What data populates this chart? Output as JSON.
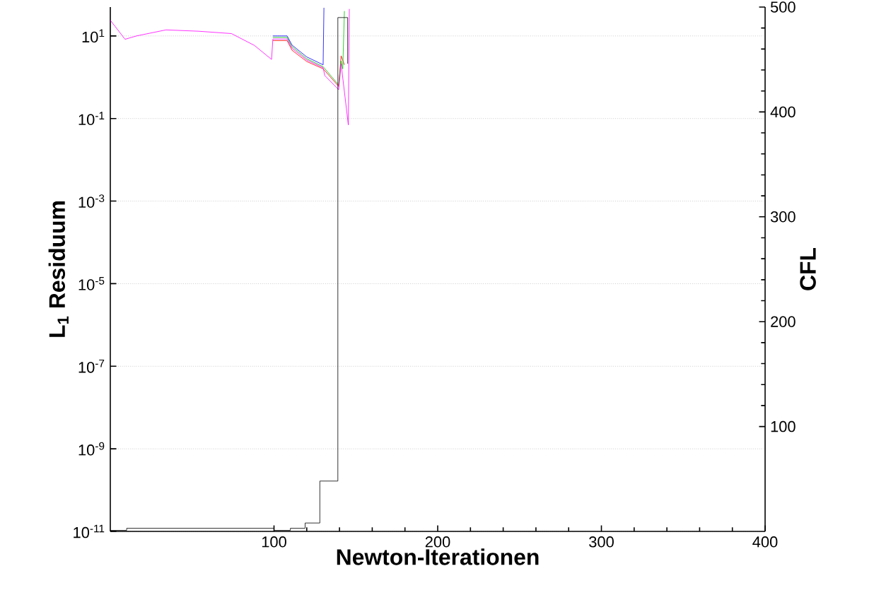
{
  "chart_data": {
    "type": "line",
    "xlabel": "Newton-Iterationen",
    "ylabel": "L$_{1}$ Residuum",
    "y2label": "CFL",
    "xlim": [
      0,
      400
    ],
    "xticks": [
      100,
      200,
      300,
      400
    ],
    "ylim": [
      1e-11,
      50
    ],
    "yticks": [
      {
        "value": 10,
        "label": "10$^{1}$"
      },
      {
        "value": 0.1,
        "label": "10$^{-1}$"
      },
      {
        "value": 0.001,
        "label": "10$^{-3}$"
      },
      {
        "value": 1e-05,
        "label": "10$^{-5}$"
      },
      {
        "value": 1e-07,
        "label": "10$^{-7}$"
      },
      {
        "value": 1e-09,
        "label": "10$^{-9}$"
      },
      {
        "value": 1e-11,
        "label": "10$^{-11}$"
      }
    ],
    "y2lim": [
      0,
      500
    ],
    "y2ticks": [
      100,
      200,
      300,
      400,
      500
    ],
    "log": "y",
    "grid": "y",
    "legend": false,
    "marker": "none",
    "line_style": "solid",
    "series": [
      {
        "color": "#0000ff",
        "x": [
          99.3,
          108,
          111,
          120,
          130,
          130.5
        ],
        "values": [
          10,
          10,
          6,
          3.1,
          2,
          48
        ]
      },
      {
        "color": "#ff0000",
        "x": [
          99.3,
          108,
          111,
          120,
          130,
          139.5,
          141,
          143
        ],
        "values": [
          7.7,
          7.7,
          4.5,
          2.4,
          1.6,
          0.6,
          3.3,
          2
        ]
      },
      {
        "color": "#00c000",
        "x": [
          99.3,
          108,
          111,
          120,
          130,
          139.5,
          141,
          142,
          143
        ],
        "values": [
          9.2,
          9.2,
          5.5,
          2.8,
          1.8,
          0.65,
          2.5,
          1.6,
          40
        ]
      },
      {
        "color": "#ff00ff",
        "x": [
          0,
          9,
          16,
          34,
          54,
          74,
          88,
          98.5,
          99.3,
          108,
          111,
          120,
          130,
          131,
          139.5,
          141,
          145.4,
          146
        ],
        "values": [
          24,
          8.3,
          10,
          14,
          13,
          11.4,
          5.9,
          2.7,
          8.4,
          8.4,
          5,
          2.6,
          1.7,
          1.1,
          0.5,
          2.1,
          0.07,
          45
        ]
      },
      {
        "color": "#000000",
        "axis": "y2",
        "type": "step",
        "x": [
          0,
          10,
          100,
          110,
          119,
          128,
          139,
          145
        ],
        "values": [
          1,
          3,
          1,
          3,
          8,
          48,
          490,
          446
        ]
      }
    ]
  }
}
